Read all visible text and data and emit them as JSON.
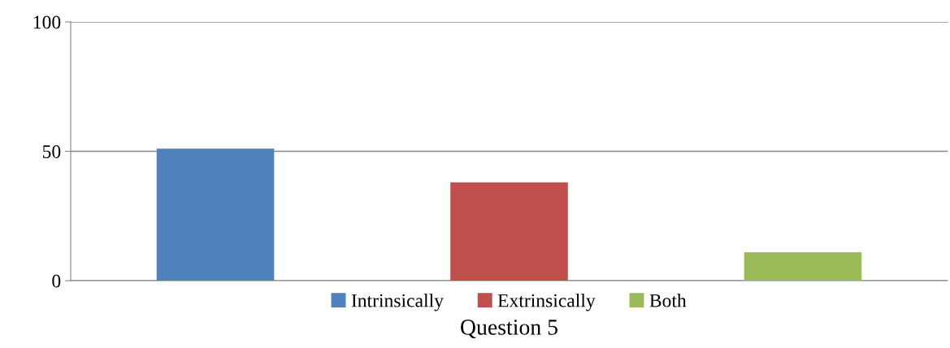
{
  "chart_data": {
    "type": "bar",
    "categories": [
      "Question 5"
    ],
    "series": [
      {
        "name": "Intrinsically",
        "color": "#4f81bd",
        "values": [
          51
        ]
      },
      {
        "name": "Extrinsically",
        "color": "#c0504d",
        "values": [
          38
        ]
      },
      {
        "name": "Both",
        "color": "#9bbb59",
        "values": [
          11
        ]
      }
    ],
    "ylim": [
      0,
      100
    ],
    "yticks": [
      0,
      50,
      100
    ],
    "grid": "y",
    "legend": "bottom"
  }
}
